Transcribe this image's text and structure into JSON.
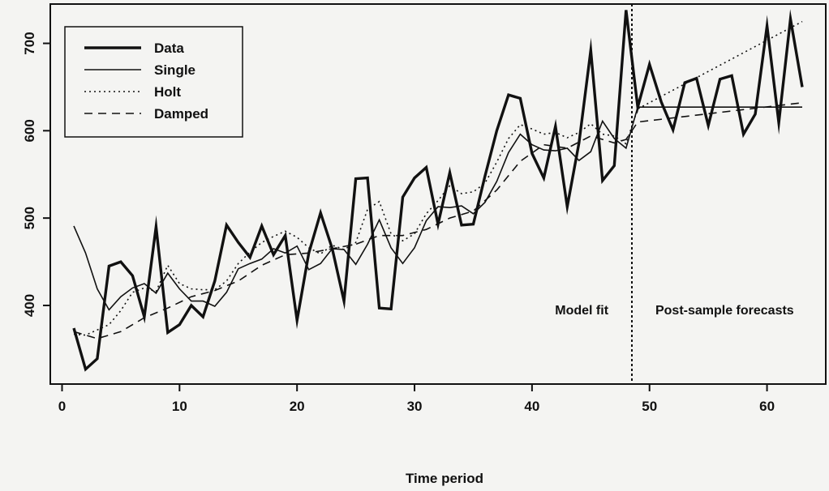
{
  "chart_data": {
    "type": "line",
    "xlabel": "Time period",
    "ylabel": "",
    "xlim": [
      -1,
      65
    ],
    "ylim": [
      310,
      745
    ],
    "x_ticks": [
      0,
      10,
      20,
      30,
      40,
      50,
      60
    ],
    "y_ticks": [
      400,
      500,
      600,
      700
    ],
    "grid": false,
    "legend": {
      "placement": "top-left"
    },
    "divider_x": 48.5,
    "annotations": [
      {
        "text": "Model fit",
        "x": 46.5,
        "y": 400,
        "anchor": "end"
      },
      {
        "text": "Post-sample forecasts",
        "x": 50.5,
        "y": 400,
        "anchor": "start"
      }
    ],
    "series": [
      {
        "name": "Data",
        "style": "solid",
        "weight": "thick",
        "x": [
          1,
          2,
          3,
          4,
          5,
          6,
          7,
          8,
          9,
          10,
          11,
          12,
          13,
          14,
          15,
          16,
          17,
          18,
          19,
          20,
          21,
          22,
          23,
          24,
          25,
          26,
          27,
          28,
          29,
          30,
          31,
          32,
          33,
          34,
          35,
          36,
          37,
          38,
          39,
          40,
          41,
          42,
          43,
          44,
          45,
          46,
          47,
          48,
          49,
          50,
          51,
          52,
          53,
          54,
          55,
          56,
          57,
          58,
          59,
          60,
          61,
          62,
          63
        ],
        "y": [
          374,
          327,
          339,
          445,
          450,
          434,
          387,
          490,
          369,
          378,
          400,
          387,
          428,
          492,
          472,
          455,
          491,
          458,
          480,
          383,
          460,
          506,
          465,
          405,
          545,
          546,
          397,
          396,
          524,
          546,
          558,
          493,
          552,
          492,
          493,
          548,
          600,
          641,
          637,
          574,
          546,
          605,
          513,
          586,
          692,
          543,
          560,
          738,
          627,
          676,
          633,
          601,
          655,
          660,
          606,
          659,
          663,
          596,
          619,
          720,
          609,
          728,
          650
        ]
      },
      {
        "name": "Single",
        "style": "solid",
        "weight": "thin",
        "x": [
          1,
          2,
          3,
          4,
          5,
          6,
          7,
          8,
          9,
          10,
          11,
          12,
          13,
          14,
          15,
          16,
          17,
          18,
          19,
          20,
          21,
          22,
          23,
          24,
          25,
          26,
          27,
          28,
          29,
          30,
          31,
          32,
          33,
          34,
          35,
          36,
          37,
          38,
          39,
          40,
          41,
          42,
          43,
          44,
          45,
          46,
          47,
          48,
          49,
          63
        ],
        "y": [
          491,
          460,
          419,
          395,
          410,
          420,
          425,
          414,
          437,
          419,
          405,
          405,
          399,
          415,
          442,
          448,
          453,
          465,
          460,
          468,
          441,
          448,
          465,
          464,
          447,
          470,
          498,
          466,
          448,
          466,
          497,
          513,
          512,
          514,
          505,
          518,
          542,
          575,
          596,
          584,
          578,
          577,
          580,
          566,
          576,
          611,
          591,
          580,
          627,
          627
        ]
      },
      {
        "name": "Holt",
        "style": "dotted",
        "weight": "thin",
        "x": [
          1,
          2,
          3,
          4,
          5,
          6,
          7,
          8,
          9,
          10,
          11,
          12,
          13,
          14,
          15,
          16,
          17,
          18,
          19,
          20,
          21,
          22,
          23,
          24,
          25,
          26,
          27,
          28,
          29,
          30,
          31,
          32,
          33,
          34,
          35,
          36,
          37,
          38,
          39,
          40,
          41,
          42,
          43,
          44,
          45,
          46,
          47,
          48,
          49,
          63
        ],
        "y": [
          367,
          366,
          372,
          378,
          394,
          415,
          420,
          416,
          446,
          425,
          419,
          418,
          418,
          428,
          448,
          461,
          472,
          479,
          485,
          478,
          466,
          459,
          469,
          464,
          472,
          510,
          519,
          482,
          474,
          482,
          505,
          520,
          537,
          528,
          530,
          540,
          564,
          591,
          607,
          602,
          596,
          598,
          592,
          598,
          608,
          596,
          594,
          585,
          625,
          725
        ]
      },
      {
        "name": "Damped",
        "style": "dashed",
        "weight": "thin",
        "x": [
          1,
          3,
          5,
          7,
          9,
          11,
          13,
          15,
          17,
          19,
          21,
          23,
          25,
          27,
          29,
          31,
          33,
          35,
          37,
          39,
          41,
          43,
          45,
          47,
          48,
          49,
          63
        ],
        "y": [
          370,
          362,
          370,
          386,
          397,
          410,
          417,
          428,
          446,
          458,
          460,
          465,
          470,
          480,
          480,
          487,
          500,
          508,
          532,
          565,
          584,
          580,
          594,
          586,
          590,
          610,
          632
        ]
      }
    ]
  }
}
